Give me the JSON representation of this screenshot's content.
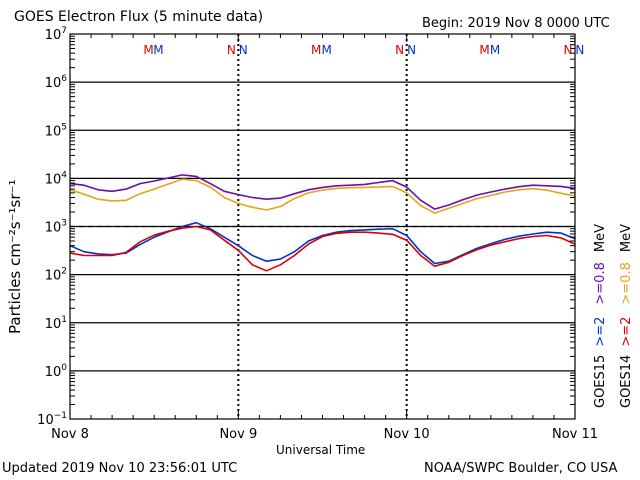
{
  "header": {
    "title": "GOES Electron Flux (5 minute data)",
    "begin": "Begin: 2019 Nov 8 0000 UTC"
  },
  "footer": {
    "updated": "Updated 2019 Nov 10 23:56:01 UTC",
    "credit": "NOAA/SWPC Boulder, CO USA"
  },
  "colors": {
    "goes15_08": "#6a0dad",
    "goes14_08": "#e8a317",
    "goes15_2": "#0033cc",
    "goes14_2": "#dd0000"
  },
  "chart_data": {
    "type": "line",
    "title": "GOES Electron Flux (5 minute data)",
    "xlabel": "Universal Time",
    "ylabel": "Particles cm⁻²s⁻¹sr⁻¹",
    "y_scale": "log",
    "ylim": [
      0.1,
      10000000
    ],
    "xlim": [
      0,
      72
    ],
    "x_unit": "hours since 2019 Nov 8 0000 UTC",
    "x_ticks": [
      {
        "hour": 0,
        "label": "Nov 8"
      },
      {
        "hour": 24,
        "label": "Nov 9"
      },
      {
        "hour": 48,
        "label": "Nov 10"
      },
      {
        "hour": 72,
        "label": "Nov 11"
      }
    ],
    "y_ticks": [
      {
        "exp": 7,
        "label": "10",
        "sup": "7"
      },
      {
        "exp": 6,
        "label": "10",
        "sup": "6"
      },
      {
        "exp": 5,
        "label": "10",
        "sup": "5"
      },
      {
        "exp": 4,
        "label": "10",
        "sup": "4"
      },
      {
        "exp": 3,
        "label": "10",
        "sup": "3"
      },
      {
        "exp": 2,
        "label": "10",
        "sup": "2"
      },
      {
        "exp": 1,
        "label": "10",
        "sup": "1"
      },
      {
        "exp": 0,
        "label": "10",
        "sup": "0"
      },
      {
        "exp": -1,
        "label": "10",
        "sup": "−1"
      }
    ],
    "threshold": 1000,
    "grid": true,
    "markers": [
      {
        "hour": 11.2,
        "text": "M",
        "series": "GOES14"
      },
      {
        "hour": 12.6,
        "text": "M",
        "series": "GOES15"
      },
      {
        "hour": 23.0,
        "text": "N",
        "series": "GOES14"
      },
      {
        "hour": 24.7,
        "text": "N",
        "series": "GOES15"
      },
      {
        "hour": 35.1,
        "text": "M",
        "series": "GOES14"
      },
      {
        "hour": 36.6,
        "text": "M",
        "series": "GOES15"
      },
      {
        "hour": 47.0,
        "text": "N",
        "series": "GOES14"
      },
      {
        "hour": 48.7,
        "text": "N",
        "series": "GOES15"
      },
      {
        "hour": 59.1,
        "text": "M",
        "series": "GOES14"
      },
      {
        "hour": 60.6,
        "text": "M",
        "series": "GOES15"
      },
      {
        "hour": 71.0,
        "text": "N",
        "series": "GOES14"
      },
      {
        "hour": 72.7,
        "text": "N",
        "series": "GOES15"
      }
    ],
    "legend": [
      {
        "text": "GOES15",
        "color": "#000000"
      },
      {
        "text": ">=2",
        "color": "#0033cc"
      },
      {
        "text": ">=0.8",
        "color": "#6a0dad"
      },
      {
        "text": "MeV",
        "color": "#000000"
      },
      {
        "text": "GOES14",
        "color": "#000000"
      },
      {
        "text": ">=2",
        "color": "#dd0000"
      },
      {
        "text": ">=0.8",
        "color": "#e8a317"
      },
      {
        "text": "MeV",
        "color": "#000000"
      }
    ],
    "series": [
      {
        "name": "GOES15 >=0.8 MeV",
        "color": "#6a0dad",
        "x": [
          0,
          2,
          4,
          6,
          8,
          10,
          12,
          14,
          16,
          18,
          20,
          22,
          24,
          26,
          28,
          30,
          32,
          34,
          36,
          38,
          40,
          42,
          44,
          46,
          48,
          50,
          52,
          54,
          56,
          58,
          60,
          62,
          64,
          66,
          68,
          70,
          72
        ],
        "y": [
          7800,
          7200,
          5800,
          5400,
          6000,
          7800,
          8800,
          10200,
          11800,
          11000,
          7800,
          5400,
          4600,
          4000,
          3700,
          3900,
          4800,
          5800,
          6500,
          7000,
          7200,
          7500,
          8200,
          9000,
          6600,
          3500,
          2300,
          2800,
          3600,
          4500,
          5200,
          6000,
          6700,
          7200,
          7000,
          6800,
          6200
        ]
      },
      {
        "name": "GOES14 >=0.8 MeV",
        "color": "#e8a317",
        "x": [
          0,
          2,
          4,
          6,
          8,
          10,
          12,
          14,
          16,
          18,
          20,
          22,
          24,
          26,
          28,
          30,
          32,
          34,
          36,
          38,
          40,
          42,
          44,
          46,
          48,
          50,
          52,
          54,
          56,
          58,
          60,
          62,
          64,
          66,
          68,
          70,
          72
        ],
        "y": [
          5800,
          4700,
          3700,
          3400,
          3500,
          4800,
          6000,
          7600,
          9600,
          9000,
          6600,
          4000,
          3000,
          2500,
          2200,
          2600,
          3800,
          5000,
          5700,
          6200,
          6400,
          6500,
          6600,
          6800,
          5000,
          2700,
          1900,
          2400,
          3000,
          3800,
          4400,
          5200,
          5800,
          6100,
          5700,
          4900,
          4300
        ]
      },
      {
        "name": "GOES15 >=2 MeV",
        "color": "#0033cc",
        "x": [
          0,
          2,
          4,
          6,
          8,
          10,
          12,
          14,
          16,
          18,
          20,
          22,
          24,
          26,
          28,
          30,
          32,
          34,
          36,
          38,
          40,
          42,
          44,
          46,
          48,
          50,
          52,
          54,
          56,
          58,
          60,
          62,
          64,
          66,
          68,
          70,
          72
        ],
        "y": [
          400,
          300,
          270,
          260,
          280,
          420,
          600,
          780,
          1000,
          1200,
          900,
          600,
          400,
          250,
          190,
          210,
          300,
          500,
          650,
          760,
          820,
          850,
          880,
          900,
          650,
          300,
          170,
          190,
          260,
          350,
          440,
          540,
          630,
          700,
          760,
          730,
          560
        ]
      },
      {
        "name": "GOES14 >=2 MeV",
        "color": "#dd0000",
        "x": [
          0,
          2,
          4,
          6,
          8,
          10,
          12,
          14,
          16,
          18,
          20,
          22,
          24,
          26,
          28,
          30,
          32,
          34,
          36,
          38,
          40,
          42,
          44,
          46,
          48,
          50,
          52,
          54,
          56,
          58,
          60,
          62,
          64,
          66,
          68,
          70,
          72
        ],
        "y": [
          280,
          250,
          250,
          250,
          290,
          480,
          660,
          800,
          920,
          1000,
          850,
          520,
          320,
          160,
          120,
          160,
          250,
          430,
          620,
          720,
          760,
          760,
          730,
          690,
          520,
          250,
          150,
          180,
          250,
          330,
          410,
          480,
          560,
          620,
          650,
          580,
          430
        ]
      }
    ]
  }
}
